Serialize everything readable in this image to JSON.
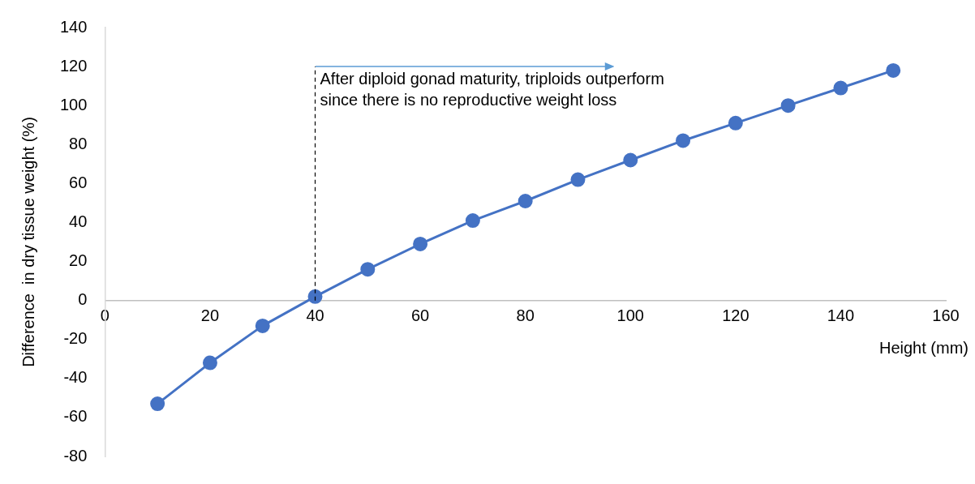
{
  "chart_data": {
    "type": "line",
    "xlabel": "Height (mm)",
    "ylabel": "Difference  in dry tissue weight (%)",
    "x": [
      10,
      20,
      30,
      40,
      50,
      60,
      70,
      80,
      90,
      100,
      110,
      120,
      130,
      140,
      150
    ],
    "series": [
      {
        "color": "#4472c4",
        "values": [
          -53,
          -32,
          -13,
          2,
          16,
          29,
          41,
          51,
          62,
          72,
          82,
          91,
          100,
          109,
          118
        ]
      }
    ],
    "xlim": [
      0,
      160
    ],
    "xticks": [
      0,
      20,
      40,
      60,
      80,
      100,
      120,
      140,
      160
    ],
    "ylim": [
      -80,
      140
    ],
    "yticks": [
      -80,
      -60,
      -40,
      -20,
      0,
      20,
      40,
      60,
      80,
      100,
      120,
      140
    ],
    "ref_lines": [
      {
        "axis": "x",
        "value": 40,
        "label": "After diploid gonad maturity, triploids outperform since there is no reproductive weight loss",
        "color": "#000000",
        "line_style": "dashed"
      }
    ],
    "grid": false,
    "legend": false,
    "marker": "circle",
    "line_style": "solid"
  }
}
